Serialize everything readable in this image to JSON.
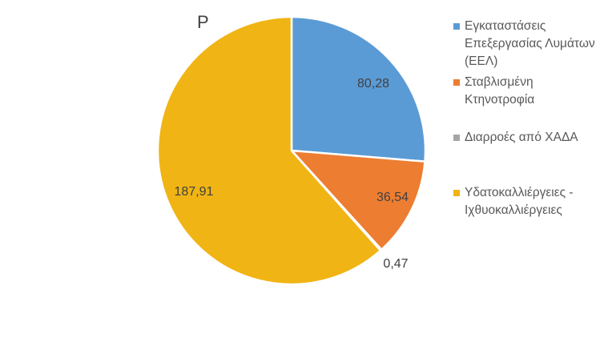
{
  "chart_data": {
    "type": "pie",
    "title": "P",
    "legend_position": "right",
    "slices": [
      {
        "label": "Εγκαταστάσεις Επεξεργασίας Λυμάτων (ΕΕΛ)",
        "value": 80.28,
        "value_label": "80,28",
        "color": "#5B9BD5"
      },
      {
        "label": "Σταβλισμένη Κτηνοτροφία",
        "value": 36.54,
        "value_label": "36,54",
        "color": "#ED7D31"
      },
      {
        "label": "Διαρροές από ΧΑΔΑ",
        "value": 0.47,
        "value_label": "0,47",
        "color": "#A5A5A5"
      },
      {
        "label": "Υδατοκαλλιέργειες - Ιχθυοκαλλιέργειες",
        "value": 187.91,
        "value_label": "187,91",
        "color": "#F0B414"
      }
    ]
  },
  "legend_lines": [
    "Εγκαταστάσεις\nΕπεξεργασίας Λυμάτων\n(ΕΕΛ)",
    "Σταβλισμένη\nΚτηνοτροφία",
    "Διαρροές από ΧΑΔΑ",
    "Υδατοκαλλιέργειες -\nΙχθυοκαλλιέργειες"
  ]
}
